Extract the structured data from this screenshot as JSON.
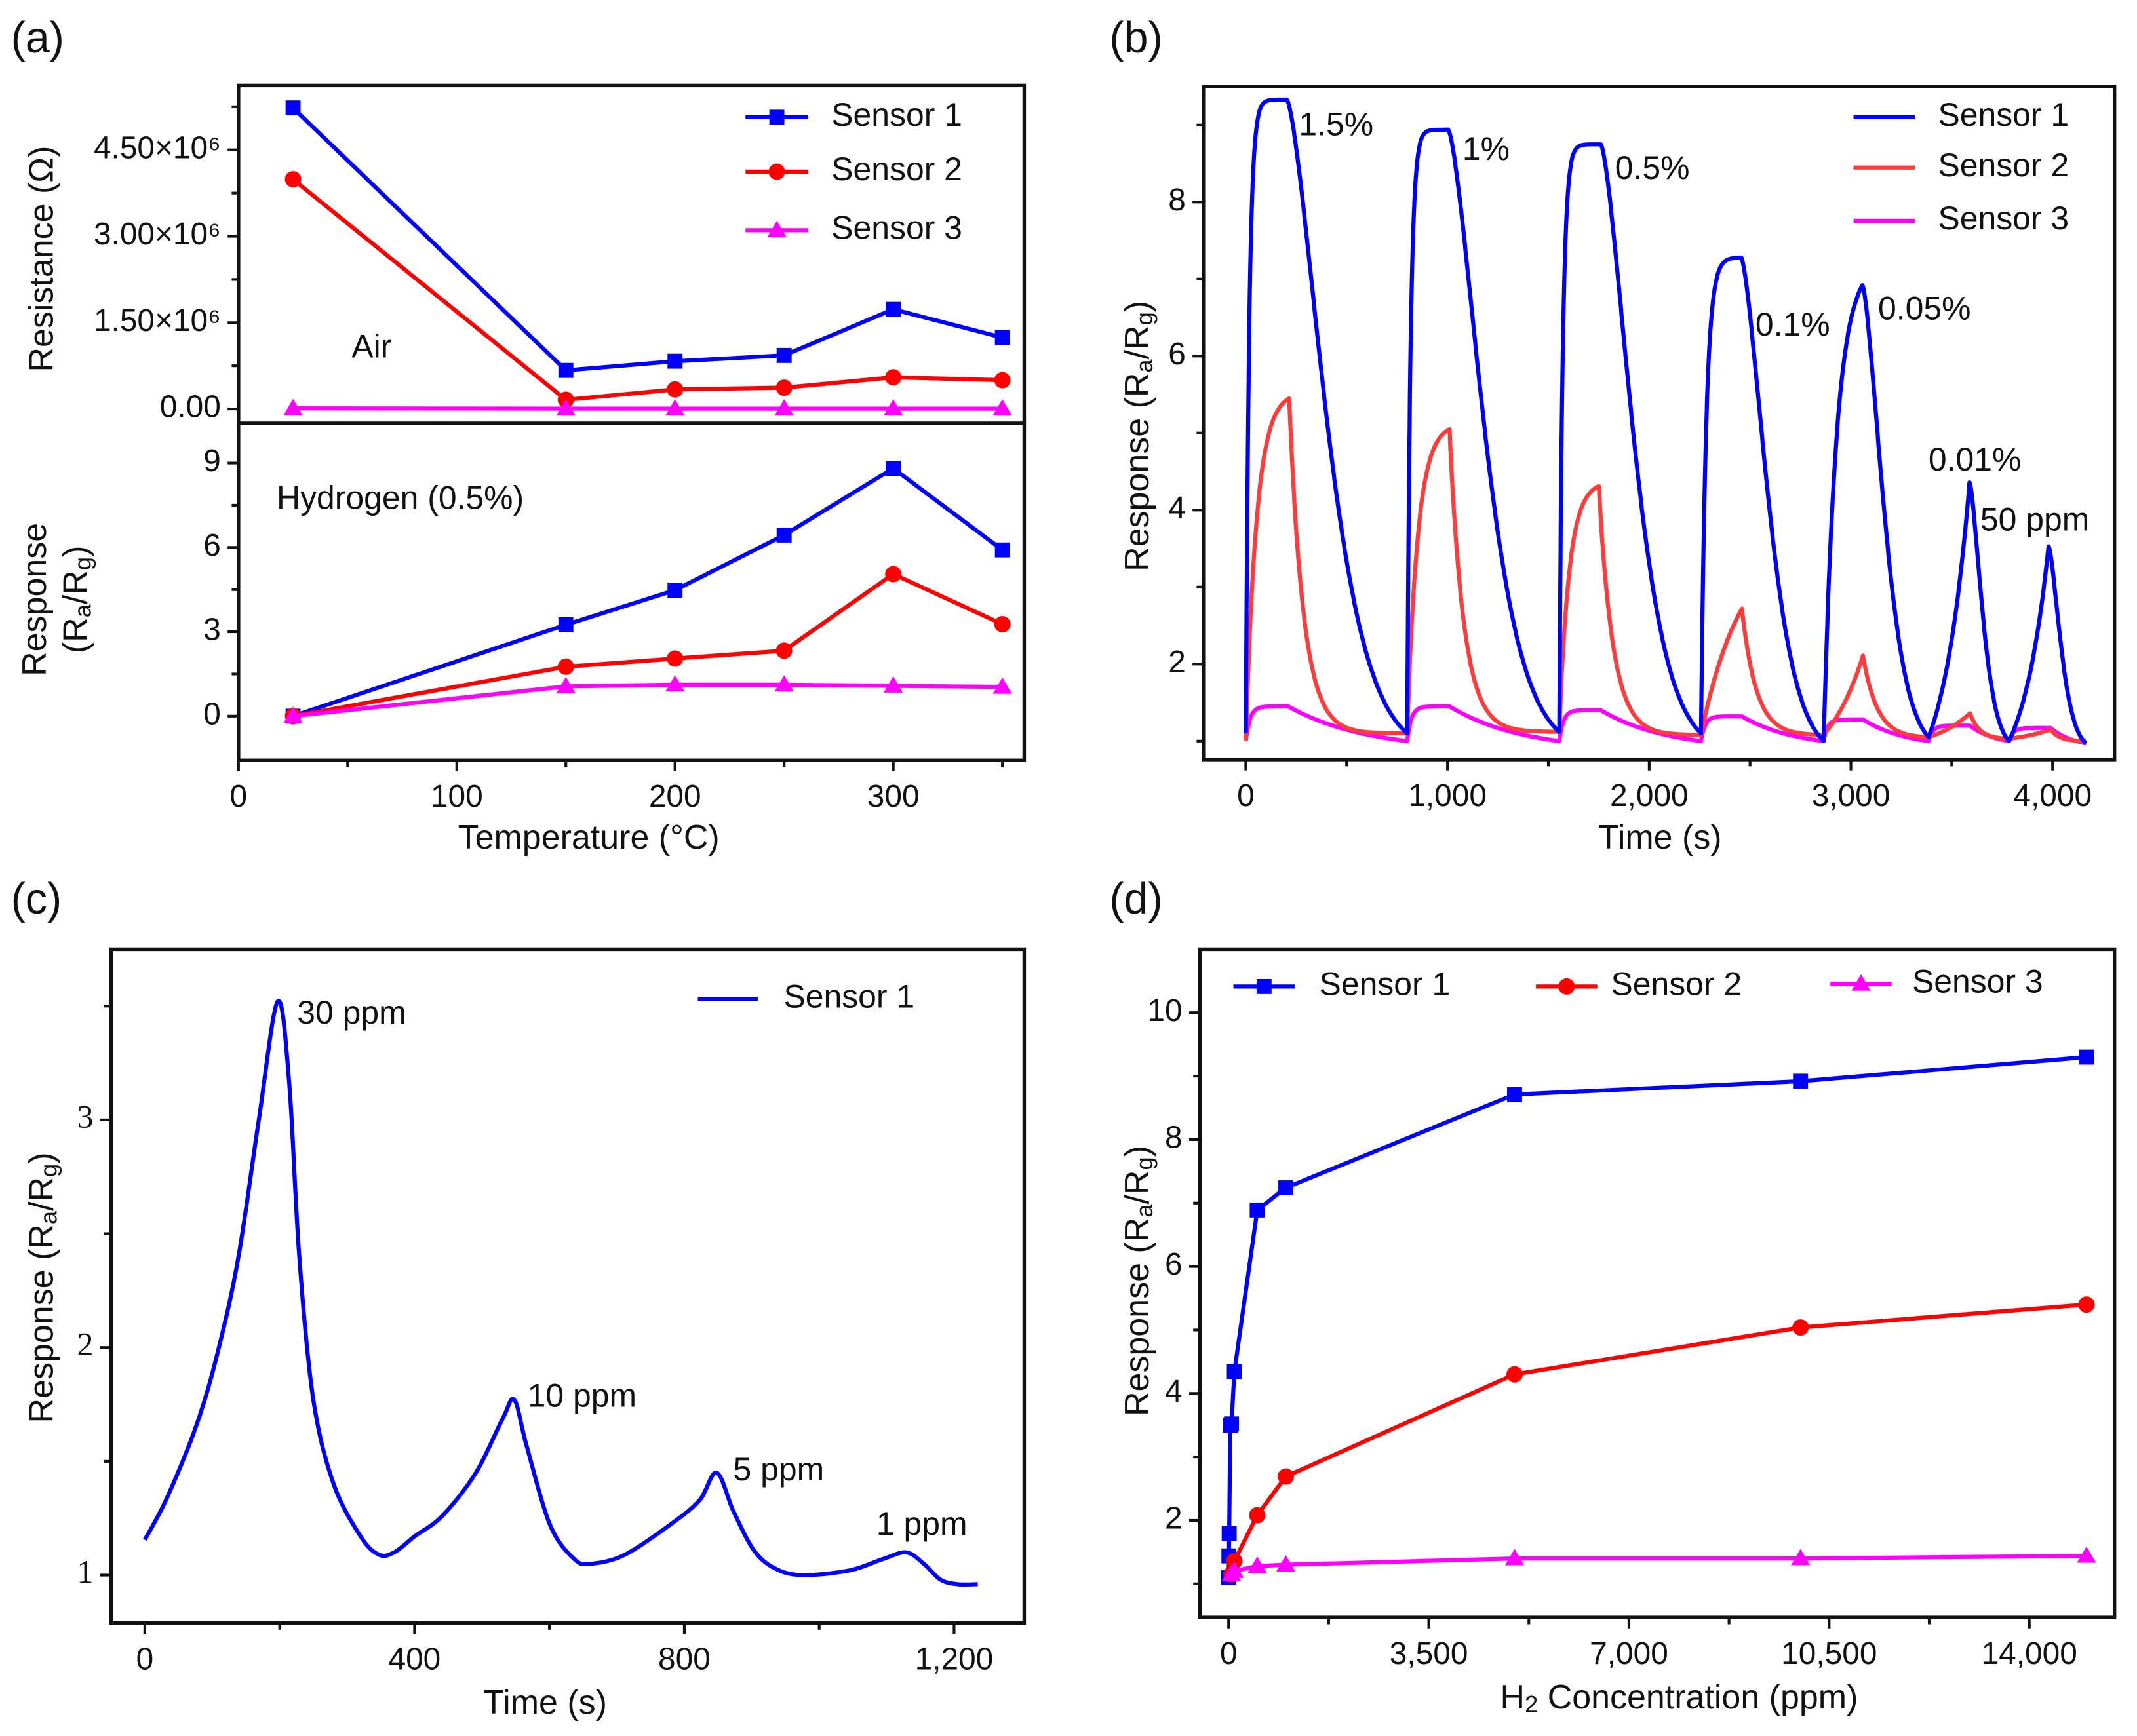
{
  "figure": {
    "panel_labels": [
      "(a)",
      "(b)",
      "(c)",
      "(d)"
    ]
  },
  "chart_data": [
    {
      "type": "line",
      "panel": "(a)",
      "subplot": "top",
      "xlim": [
        0,
        360
      ],
      "ylim": [
        -250000,
        5620000
      ],
      "yticks": {
        "values": [
          0,
          1500000,
          3000000,
          4500000
        ],
        "labels": [
          "0.00",
          "1.50×10⁶",
          "3.00×10⁶",
          "4.50×10⁶"
        ]
      },
      "yminor": [
        750000,
        2250000,
        3750000,
        5250000
      ],
      "ylabel": [
        [
          {
            "t": "Resistance (Ω)"
          }
        ]
      ],
      "annotations": [
        "Air"
      ],
      "x": [
        25,
        150,
        200,
        250,
        300,
        350
      ],
      "series": [
        {
          "name": "Sensor 1",
          "color": "#0000ff",
          "marker": "square",
          "values": [
            5230000,
            670000,
            830000,
            930000,
            1730000,
            1240000
          ]
        },
        {
          "name": "Sensor 2",
          "color": "#ff0000",
          "marker": "circle",
          "values": [
            3990000,
            160000,
            340000,
            370000,
            550000,
            500000
          ]
        },
        {
          "name": "Sensor 3",
          "color": "#ff00ff",
          "marker": "triangle",
          "values": [
            10000,
            5000,
            5000,
            5000,
            5000,
            5000
          ]
        }
      ],
      "legend": {
        "position": "top-right"
      }
    },
    {
      "type": "line",
      "panel": "(a)",
      "subplot": "bottom",
      "xlim": [
        0,
        360
      ],
      "ylim": [
        -1.57,
        10.41
      ],
      "xticks": {
        "values": [
          0,
          100,
          200,
          300
        ],
        "labels": [
          "0",
          "100",
          "200",
          "300"
        ]
      },
      "xminor": [
        50,
        150,
        250,
        350
      ],
      "yticks": {
        "values": [
          0,
          3,
          6,
          9
        ],
        "labels": [
          "0",
          "3",
          "6",
          "9"
        ]
      },
      "yminor": [
        1.5,
        4.5,
        7.5
      ],
      "xlabel": [
        [
          {
            "t": "Temperature (°C)"
          }
        ]
      ],
      "ylabel": [
        [
          {
            "t": "Response"
          }
        ],
        [
          {
            "t": "(R"
          },
          {
            "t": "a",
            "sub": true
          },
          {
            "t": "/R"
          },
          {
            "t": "g",
            "sub": true
          },
          {
            "t": ")"
          }
        ]
      ],
      "annotations": [
        "Hydrogen (0.5%)"
      ],
      "x": [
        25,
        150,
        200,
        250,
        300,
        350
      ],
      "series": [
        {
          "name": "Sensor 1",
          "color": "#0000ff",
          "marker": "square",
          "values": [
            0.0,
            3.25,
            4.48,
            6.44,
            8.81,
            5.91
          ]
        },
        {
          "name": "Sensor 2",
          "color": "#ff0000",
          "marker": "circle",
          "values": [
            0.0,
            1.76,
            2.05,
            2.33,
            5.05,
            3.27
          ]
        },
        {
          "name": "Sensor 3",
          "color": "#ff00ff",
          "marker": "triangle",
          "values": [
            0.0,
            1.06,
            1.12,
            1.12,
            1.08,
            1.04
          ]
        }
      ]
    },
    {
      "type": "line",
      "panel": "(b)",
      "xlim": [
        -210,
        4307
      ],
      "ylim": [
        0.76,
        9.5
      ],
      "xticks": {
        "values": [
          0,
          1000,
          2000,
          3000,
          4000
        ],
        "labels": [
          "0",
          "1,000",
          "2,000",
          "3,000",
          "4,000"
        ]
      },
      "xminor": [
        500,
        1500,
        2500,
        3500
      ],
      "yticks": {
        "values": [
          2,
          4,
          6,
          8
        ],
        "labels": [
          "2",
          "4",
          "6",
          "8"
        ]
      },
      "yminor": [
        1,
        3,
        5,
        7,
        9
      ],
      "xlabel": [
        [
          {
            "t": "Time (s)"
          }
        ]
      ],
      "ylabel": [
        [
          {
            "t": "Response (R"
          },
          {
            "t": "a",
            "sub": true
          },
          {
            "t": "/R"
          },
          {
            "t": "g",
            "sub": true
          },
          {
            "t": ")"
          }
        ]
      ],
      "annotations": [
        "1.5%",
        "1%",
        "0.5%",
        "0.1%",
        "0.05%",
        "0.01%",
        "50 ppm"
      ],
      "cycle_starts": [
        0,
        800,
        1554,
        2257,
        2865,
        3385,
        3784
      ],
      "end_time": 4166,
      "series": [
        {
          "name": "Sensor 1",
          "color": "#0000ff",
          "start_value": 1.1,
          "peak_times": [
            203,
            1003,
            1760,
            2456,
            3057,
            3588,
            3980
          ],
          "peak_values": [
            9.33,
            8.94,
            8.75,
            7.28,
            6.92,
            4.36,
            3.53
          ],
          "recovery_baselines": [
            1.1,
            1.12,
            1.1,
            1.0,
            1.05,
            1.0,
            0.97
          ]
        },
        {
          "name": "Sensor 2",
          "color": "#ff3b3b",
          "start_value": 1.0,
          "peak_times": [
            215,
            1010,
            1750,
            2460,
            3060,
            3590,
            3990
          ],
          "peak_values": [
            5.45,
            5.05,
            4.31,
            2.72,
            2.11,
            1.36,
            1.15
          ],
          "recovery_baselines": [
            1.1,
            1.12,
            1.08,
            1.08,
            1.05,
            1.03,
            1.0
          ]
        },
        {
          "name": "Sensor 3",
          "color": "#ff00ff",
          "start_value": 1.0,
          "peak_times": [
            210,
            1010,
            1760,
            2460,
            3060,
            3590,
            3990
          ],
          "peak_values": [
            1.45,
            1.45,
            1.4,
            1.32,
            1.28,
            1.2,
            1.17
          ],
          "recovery_baselines": [
            1.0,
            1.0,
            1.0,
            1.0,
            1.0,
            1.0,
            0.97
          ]
        }
      ],
      "legend": {
        "position": "top-right"
      }
    },
    {
      "type": "line",
      "panel": "(c)",
      "xlim": [
        -50,
        1304
      ],
      "ylim": [
        0.79,
        3.75
      ],
      "xticks": {
        "values": [
          0,
          400,
          800,
          1200
        ],
        "labels": [
          "0",
          "400",
          "800",
          "1,200"
        ]
      },
      "xminor": [
        200,
        600,
        1000
      ],
      "yticks": {
        "values": [
          1,
          2,
          3
        ],
        "labels": [
          "1",
          "2",
          "3"
        ]
      },
      "yminor": [
        1.5,
        2.5,
        3.5
      ],
      "xlabel": [
        [
          {
            "t": "Time (s)"
          }
        ]
      ],
      "ylabel": [
        [
          {
            "t": "Response (R"
          },
          {
            "t": "a",
            "sub": true
          },
          {
            "t": "/R"
          },
          {
            "t": "g",
            "sub": true
          },
          {
            "t": ")"
          }
        ]
      ],
      "annotations": [
        "30 ppm",
        "10 ppm",
        "5 ppm",
        "1 ppm"
      ],
      "series": [
        {
          "name": "Sensor 1",
          "color": "#0000ff",
          "points": [
            [
              0,
              1.155
            ],
            [
              33,
              1.34
            ],
            [
              78,
              1.67
            ],
            [
              109,
              1.99
            ],
            [
              139,
              2.4
            ],
            [
              169,
              3.0
            ],
            [
              197,
              3.52
            ],
            [
              214,
              3.17
            ],
            [
              229,
              2.4
            ],
            [
              250,
              1.77
            ],
            [
              280,
              1.4
            ],
            [
              320,
              1.17
            ],
            [
              347,
              1.09
            ],
            [
              370,
              1.1
            ],
            [
              400,
              1.17
            ],
            [
              441,
              1.26
            ],
            [
              491,
              1.45
            ],
            [
              531,
              1.69
            ],
            [
              548,
              1.77
            ],
            [
              566,
              1.57
            ],
            [
              601,
              1.22
            ],
            [
              637,
              1.07
            ],
            [
              662,
              1.05
            ],
            [
              712,
              1.09
            ],
            [
              783,
              1.23
            ],
            [
              823,
              1.33
            ],
            [
              848,
              1.45
            ],
            [
              873,
              1.28
            ],
            [
              903,
              1.11
            ],
            [
              934,
              1.03
            ],
            [
              974,
              1.0
            ],
            [
              1044,
              1.02
            ],
            [
              1094,
              1.07
            ],
            [
              1129,
              1.1
            ],
            [
              1155,
              1.05
            ],
            [
              1180,
              0.98
            ],
            [
              1205,
              0.96
            ],
            [
              1235,
              0.96
            ]
          ]
        }
      ],
      "legend": {
        "position": "top-right"
      }
    },
    {
      "type": "line",
      "panel": "(d)",
      "xlim": [
        -500,
        15490
      ],
      "ylim": [
        0.47,
        11.0
      ],
      "xticks": {
        "values": [
          0,
          3500,
          7000,
          10500,
          14000
        ],
        "labels": [
          "0",
          "3,500",
          "7,000",
          "10,500",
          "14,000"
        ]
      },
      "xminor": [
        1750,
        5250,
        8750,
        12250
      ],
      "yticks": {
        "values": [
          2,
          4,
          6,
          8,
          10
        ],
        "labels": [
          "2",
          "4",
          "6",
          "8",
          "10"
        ]
      },
      "yminor": [
        1,
        3,
        5,
        7,
        9
      ],
      "xlabel": [
        [
          {
            "t": "H"
          },
          {
            "t": "2",
            "sub": true
          },
          {
            "t": " Concentration (ppm)"
          }
        ]
      ],
      "ylabel": [
        [
          {
            "t": "Response (R"
          },
          {
            "t": "a",
            "sub": true
          },
          {
            "t": "/R"
          },
          {
            "t": "g",
            "sub": true
          },
          {
            "t": ")"
          }
        ]
      ],
      "series": [
        {
          "name": "Sensor 1",
          "color": "#0000ff",
          "marker": "square",
          "x": [
            1,
            5,
            10,
            30,
            50,
            100,
            500,
            1000,
            5000,
            10000,
            15000
          ],
          "values": [
            1.1,
            1.44,
            1.79,
            3.5,
            3.52,
            4.34,
            6.89,
            7.24,
            8.71,
            8.92,
            9.3
          ]
        },
        {
          "name": "Sensor 2",
          "color": "#ff0000",
          "marker": "circle",
          "x": [
            50,
            100,
            500,
            1000,
            5000,
            10000,
            15000
          ],
          "values": [
            1.15,
            1.36,
            2.08,
            2.69,
            4.3,
            5.04,
            5.4
          ]
        },
        {
          "name": "Sensor 3",
          "color": "#ff00ff",
          "marker": "triangle",
          "x": [
            50,
            100,
            500,
            1000,
            5000,
            10000,
            15000
          ],
          "values": [
            1.15,
            1.2,
            1.28,
            1.3,
            1.4,
            1.4,
            1.44
          ]
        }
      ],
      "legend": {
        "position": "top"
      }
    }
  ]
}
